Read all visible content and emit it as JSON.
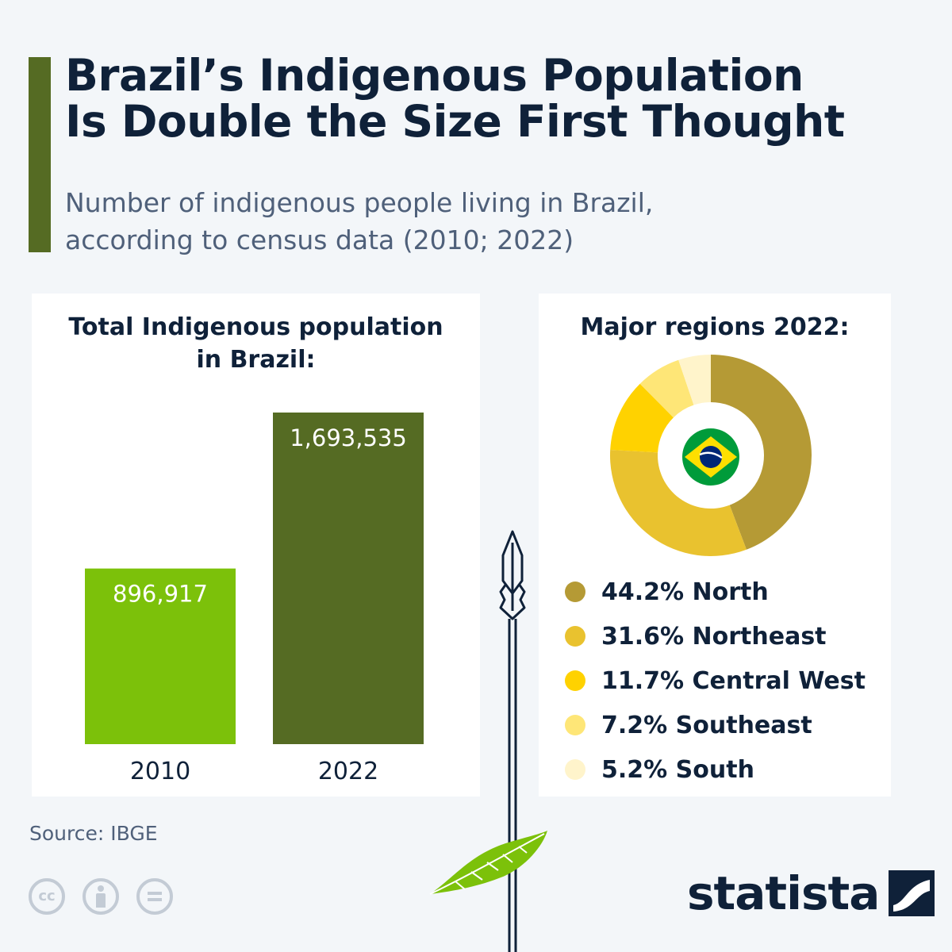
{
  "title_lines": [
    "Brazil’s Indigenous Population",
    "Is Double the Size First Thought"
  ],
  "subtitle_lines": [
    "Number of indigenous people living in Brazil,",
    "according to census data (2010; 2022)"
  ],
  "source": "Source: IBGE",
  "brand": "statista",
  "colors": {
    "title": "#0f2139",
    "accent": "#556b23",
    "bar_2010": "#7cc10a",
    "bar_2022": "#556b23",
    "north": "#b59a35",
    "northeast": "#e9c22f",
    "central_west": "#ffd200",
    "southeast": "#fee677",
    "south": "#fff4cb",
    "feather": "#7cc10a"
  },
  "icons": [
    "cc-icon",
    "attribution-icon",
    "no-derivatives-icon",
    "brazil-flag-icon",
    "spear-icon",
    "feather-icon",
    "statista-logo-icon"
  ],
  "chart_data": [
    {
      "type": "bar",
      "title_lines": [
        "Total Indigenous population",
        "in Brazil:"
      ],
      "categories": [
        "2010",
        "2022"
      ],
      "values": [
        896917,
        1693535
      ],
      "value_labels": [
        "896,917",
        "1,693,535"
      ],
      "bar_colors": [
        "#7cc10a",
        "#556b23"
      ],
      "ylim": [
        0,
        1693535
      ],
      "grid": false
    },
    {
      "type": "pie",
      "donut": true,
      "title": "Major regions 2022:",
      "labels": [
        "North",
        "Northeast",
        "Central West",
        "Southeast",
        "South"
      ],
      "values": [
        44.2,
        31.6,
        11.7,
        7.2,
        5.2
      ],
      "legend_labels": [
        "44.2% North",
        "31.6% Northeast",
        "11.7% Central West",
        "7.2% Southeast",
        "5.2% South"
      ],
      "colors": [
        "#b59a35",
        "#e9c22f",
        "#ffd200",
        "#fee677",
        "#fff4cb"
      ],
      "legend": "bottom-left"
    }
  ]
}
